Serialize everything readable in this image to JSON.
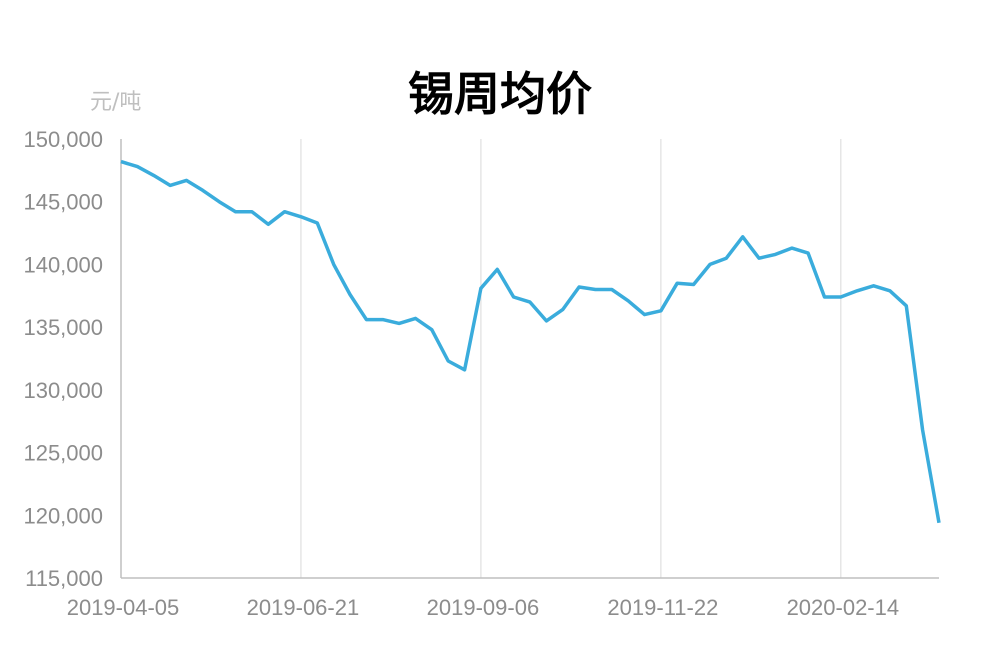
{
  "chart_data": {
    "type": "line",
    "title": "锡周均价",
    "ylabel": "元/吨",
    "xlabel": "",
    "ylim": [
      115000,
      150000
    ],
    "y_ticks": [
      115000,
      120000,
      125000,
      130000,
      135000,
      140000,
      145000,
      150000
    ],
    "y_tick_labels": [
      "115,000",
      "120,000",
      "125,000",
      "130,000",
      "135,000",
      "140,000",
      "145,000",
      "150,000"
    ],
    "x_tick_labels": [
      "2019-04-05",
      "2019-06-21",
      "2019-09-06",
      "2019-11-22",
      "2020-02-14"
    ],
    "x_tick_indices": [
      0,
      11,
      22,
      33,
      44
    ],
    "x_gridlines": true,
    "y_gridlines": false,
    "legend": "none",
    "colors": {
      "line": "#3aacdc",
      "axis": "#bfbfbf",
      "grid": "#d9d9d9",
      "tick_text": "#8c8c8c"
    },
    "series": [
      {
        "values": [
          148200,
          147800,
          147100,
          146300,
          146700,
          145900,
          145000,
          144200,
          144200,
          143200,
          144200,
          143800,
          143300,
          140000,
          137600,
          135600,
          135600,
          135300,
          135700,
          134800,
          132300,
          131600,
          138100,
          139600,
          137400,
          137000,
          135500,
          136400,
          138200,
          138000,
          138000,
          137100,
          136000,
          136300,
          138500,
          138400,
          140000,
          140500,
          142200,
          140500,
          140800,
          141300,
          140900,
          137400,
          137400,
          137900,
          138300,
          137900,
          136700,
          126800,
          119400
        ]
      }
    ]
  }
}
